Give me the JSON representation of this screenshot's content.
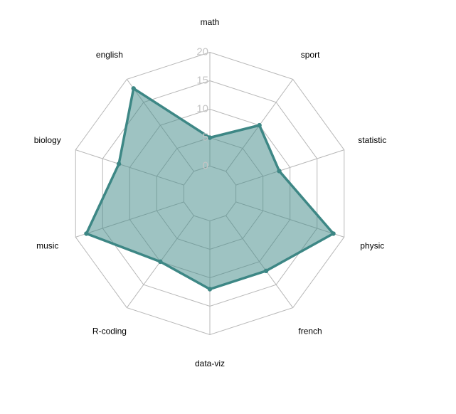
{
  "chart_data": {
    "type": "radar",
    "categories": [
      "math",
      "sport",
      "statistic",
      "physic",
      "french",
      "data-viz",
      "R-coding",
      "music",
      "biology",
      "english"
    ],
    "series": [
      {
        "values": [
          5,
          10,
          8,
          18,
          12,
          12,
          10,
          18,
          12,
          18
        ]
      }
    ],
    "rlim": [
      0,
      20
    ],
    "ticks": [
      0,
      5,
      10,
      15,
      20
    ],
    "tick_labels": [
      "0",
      "5",
      "10",
      "15",
      "20"
    ],
    "grid": true,
    "legend": "none",
    "colors": {
      "line": "#3d8785",
      "fill": "#3d8785",
      "fill_opacity": 0.5,
      "grid": "#b8b8b8",
      "tick_label": "#c4c4c4",
      "axis_label": "#000000"
    }
  }
}
